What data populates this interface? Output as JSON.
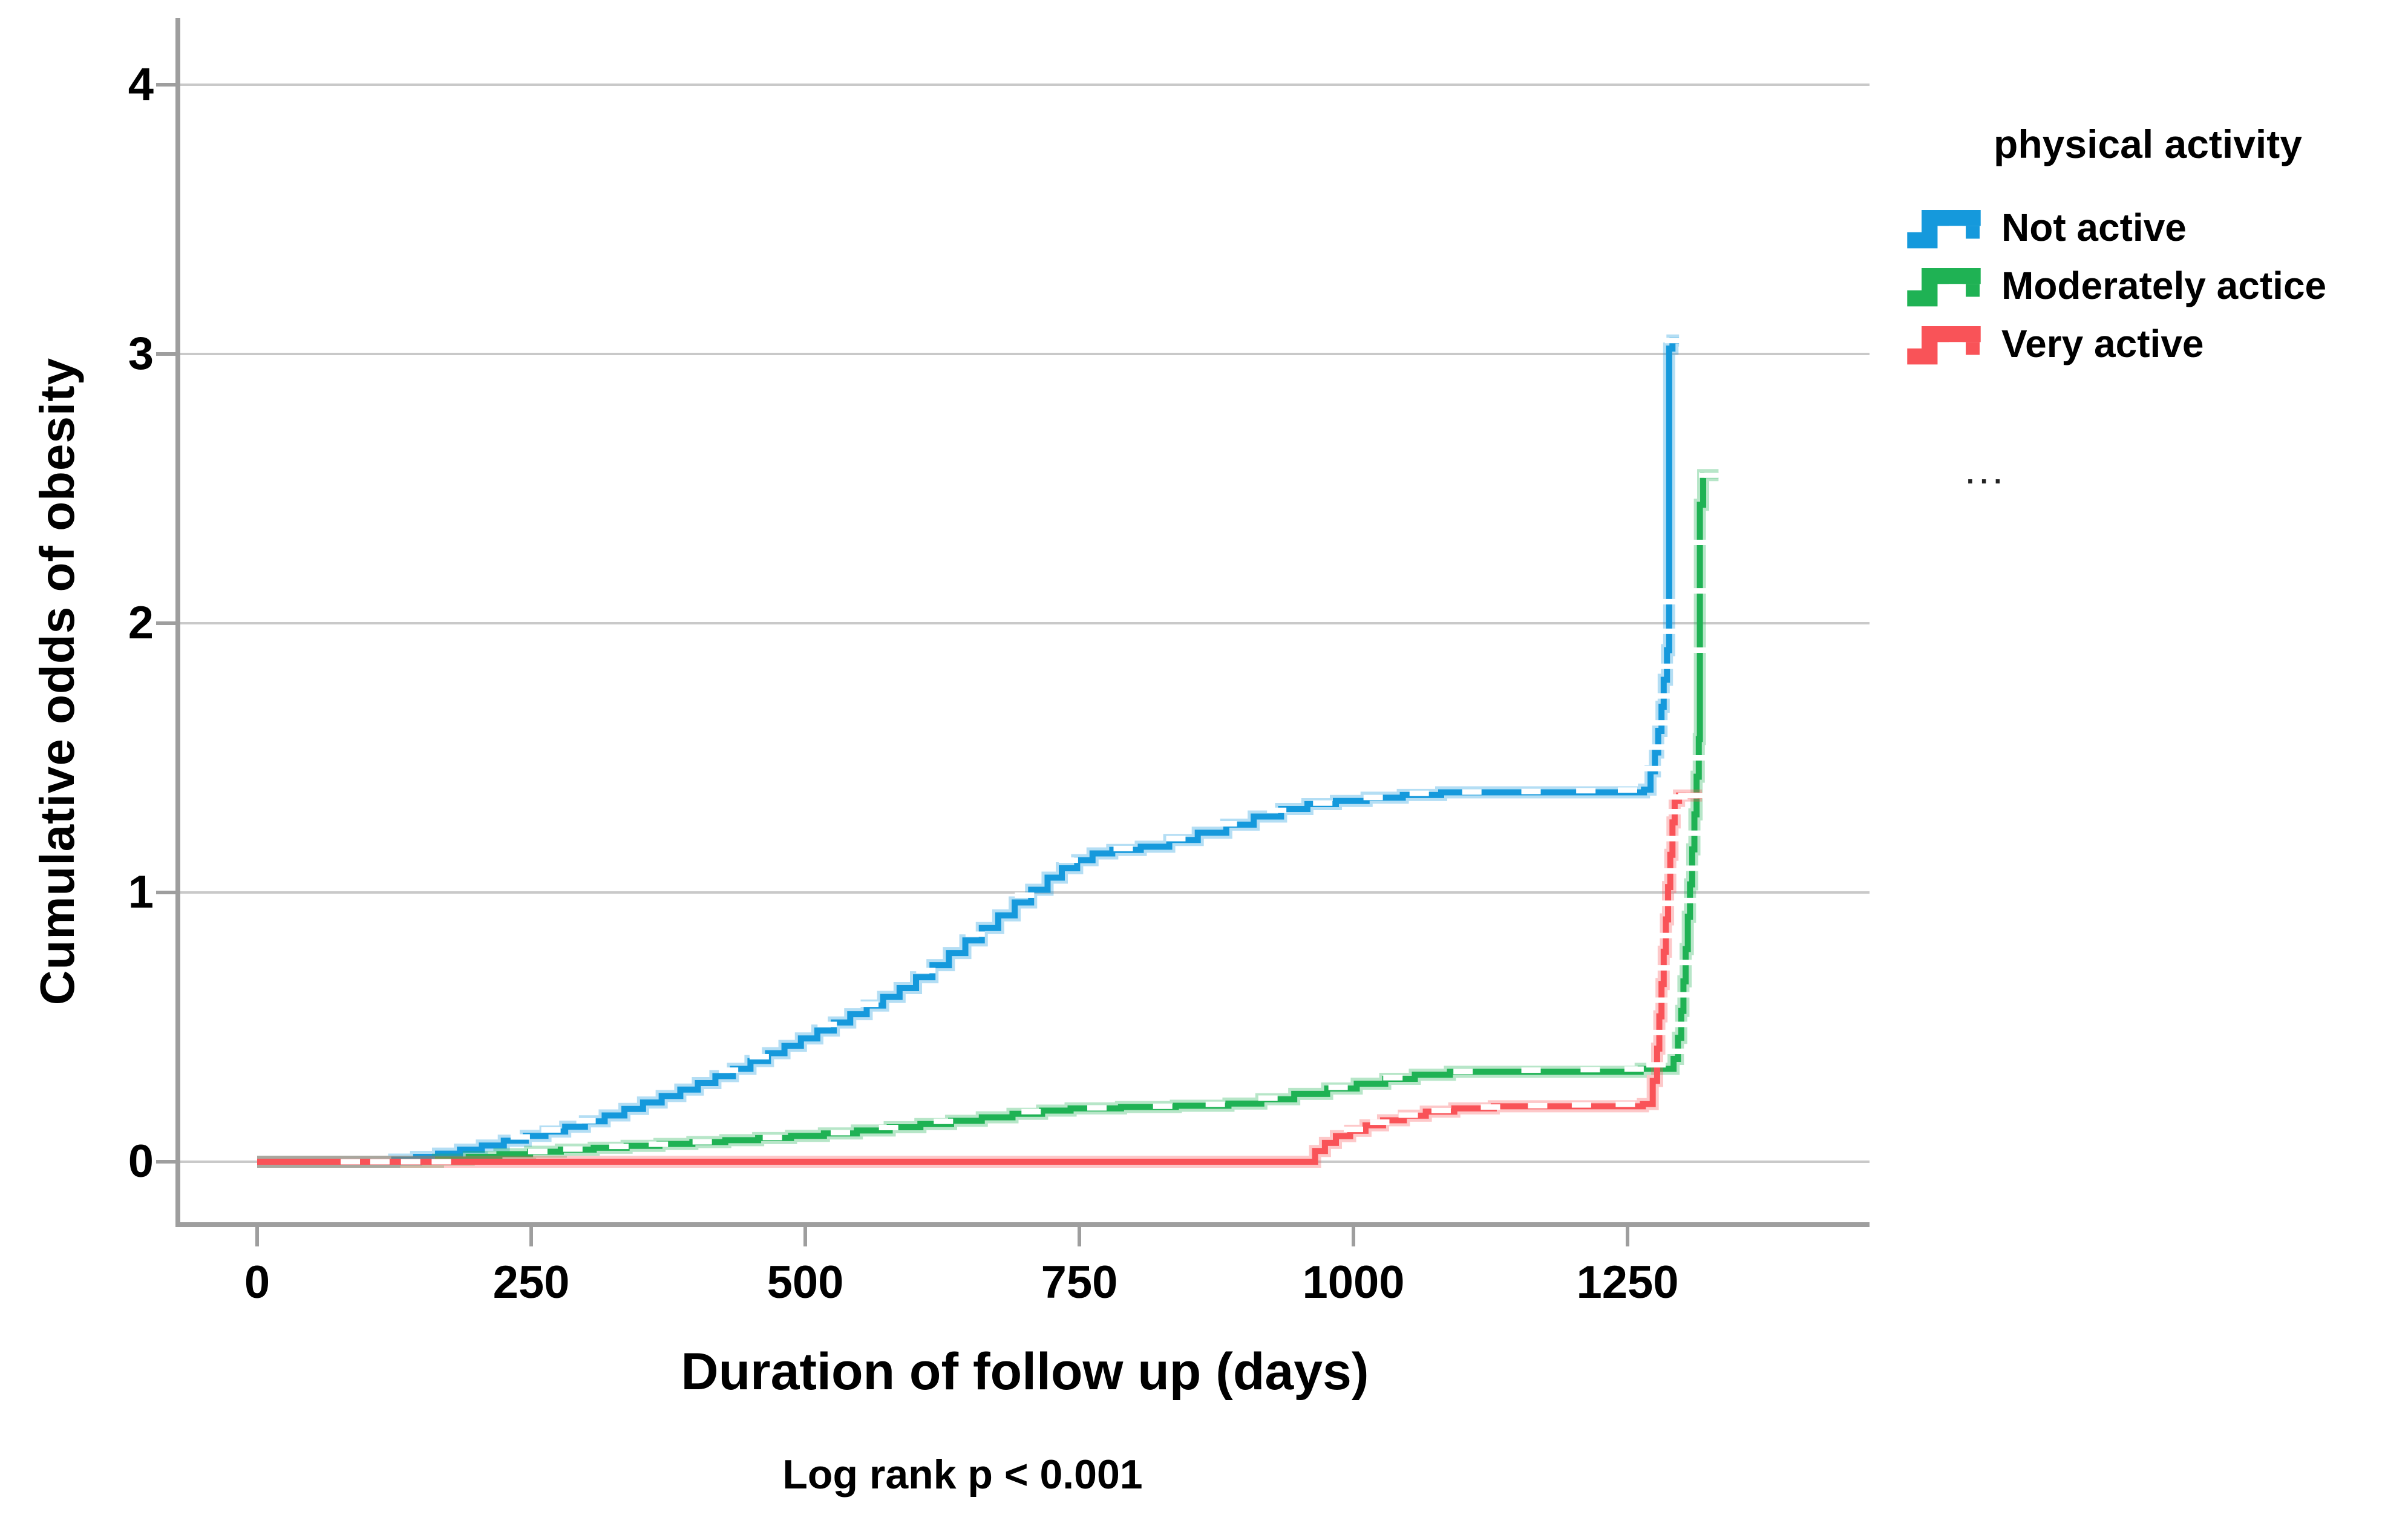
{
  "y_axis": {
    "label": "Cumulative odds of obesity",
    "ticks": [
      0,
      1,
      2,
      3,
      4
    ]
  },
  "x_axis": {
    "label": "Duration of follow up (days)",
    "ticks": [
      0,
      250,
      500,
      750,
      1000,
      1250
    ]
  },
  "caption": "Log rank p < 0.001",
  "legend": {
    "title": "physical activity",
    "ellipsis": "..."
  },
  "colors": {
    "grid": "#c9c9c9",
    "spine": "#9e9e9e",
    "tick": "#9e9e9e",
    "censor_mark": "#ffffff"
  },
  "chart_data": {
    "type": "line",
    "subtype": "step-post",
    "title": "",
    "xlabel": "Duration of follow up (days)",
    "ylabel": "Cumulative odds of obesity",
    "annotation": "Log rank p < 0.001",
    "xlim": [
      -72,
      1471
    ],
    "ylim": [
      -0.24,
      4.24
    ],
    "x_ticks": [
      0,
      250,
      500,
      750,
      1000,
      1250
    ],
    "y_ticks": [
      0,
      1,
      2,
      3,
      4
    ],
    "grid": "horizontal",
    "legend_position": "right",
    "legend_title": "physical activity",
    "series": [
      {
        "name": "Not active",
        "color": "#1599DC",
        "points": [
          [
            0,
            0
          ],
          [
            125,
            0.008
          ],
          [
            145,
            0.018
          ],
          [
            165,
            0.03
          ],
          [
            185,
            0.045
          ],
          [
            205,
            0.06
          ],
          [
            225,
            0.078
          ],
          [
            245,
            0.096
          ],
          [
            263,
            0.112
          ],
          [
            281,
            0.13
          ],
          [
            299,
            0.15
          ],
          [
            317,
            0.172
          ],
          [
            335,
            0.196
          ],
          [
            352,
            0.22
          ],
          [
            369,
            0.244
          ],
          [
            386,
            0.268
          ],
          [
            402,
            0.292
          ],
          [
            418,
            0.318
          ],
          [
            434,
            0.345
          ],
          [
            450,
            0.374
          ],
          [
            466,
            0.403
          ],
          [
            481,
            0.43
          ],
          [
            496,
            0.458
          ],
          [
            511,
            0.487
          ],
          [
            526,
            0.517
          ],
          [
            541,
            0.548
          ],
          [
            556,
            0.58
          ],
          [
            571,
            0.612
          ],
          [
            586,
            0.645
          ],
          [
            601,
            0.685
          ],
          [
            616,
            0.73
          ],
          [
            631,
            0.775
          ],
          [
            646,
            0.822
          ],
          [
            661,
            0.868
          ],
          [
            676,
            0.915
          ],
          [
            691,
            0.963
          ],
          [
            706,
            1.01
          ],
          [
            721,
            1.055
          ],
          [
            734,
            1.09
          ],
          [
            748,
            1.12
          ],
          [
            762,
            1.145
          ],
          [
            780,
            1.158
          ],
          [
            806,
            1.17
          ],
          [
            832,
            1.195
          ],
          [
            858,
            1.222
          ],
          [
            884,
            1.252
          ],
          [
            909,
            1.282
          ],
          [
            934,
            1.31
          ],
          [
            958,
            1.328
          ],
          [
            984,
            1.34
          ],
          [
            1012,
            1.352
          ],
          [
            1045,
            1.362
          ],
          [
            1080,
            1.372
          ],
          [
            1265,
            1.382
          ],
          [
            1271,
            1.45
          ],
          [
            1275,
            1.52
          ],
          [
            1278,
            1.6
          ],
          [
            1281,
            1.69
          ],
          [
            1283,
            1.79
          ],
          [
            1286,
            1.9
          ],
          [
            1288,
            3.02
          ],
          [
            1291,
            3.05
          ],
          [
            1297,
            3.05
          ]
        ],
        "censor_marks": [
          [
            240,
            0.092
          ],
          [
            268,
            0.118
          ],
          [
            300,
            0.152
          ],
          [
            430,
            0.34
          ],
          [
            458,
            0.39
          ],
          [
            520,
            0.51
          ],
          [
            558,
            0.585
          ],
          [
            610,
            0.71
          ],
          [
            655,
            0.845
          ],
          [
            700,
            0.99
          ],
          [
            740,
            1.12
          ],
          [
            790,
            1.163
          ],
          [
            838,
            1.2
          ],
          [
            885,
            1.255
          ],
          [
            930,
            1.305
          ],
          [
            972,
            1.332
          ],
          [
            1018,
            1.353
          ],
          [
            1060,
            1.368
          ],
          [
            1108,
            1.373
          ],
          [
            1162,
            1.375
          ],
          [
            1212,
            1.378
          ],
          [
            1250,
            1.38
          ],
          [
            1272,
            1.46
          ],
          [
            1277,
            1.54
          ],
          [
            1280,
            1.63
          ],
          [
            1283,
            1.73
          ],
          [
            1285,
            1.84
          ],
          [
            1288,
            1.97
          ],
          [
            1288,
            2.08
          ],
          [
            1293,
            3.05
          ]
        ]
      },
      {
        "name": "Moderately actice",
        "color": "#1FB254",
        "points": [
          [
            0,
            0
          ],
          [
            165,
            0.008
          ],
          [
            193,
            0.018
          ],
          [
            221,
            0.028
          ],
          [
            249,
            0.037
          ],
          [
            277,
            0.045
          ],
          [
            307,
            0.052
          ],
          [
            337,
            0.059
          ],
          [
            367,
            0.066
          ],
          [
            397,
            0.073
          ],
          [
            427,
            0.08
          ],
          [
            457,
            0.088
          ],
          [
            487,
            0.096
          ],
          [
            517,
            0.105
          ],
          [
            547,
            0.116
          ],
          [
            577,
            0.128
          ],
          [
            605,
            0.14
          ],
          [
            633,
            0.152
          ],
          [
            661,
            0.165
          ],
          [
            689,
            0.178
          ],
          [
            716,
            0.19
          ],
          [
            742,
            0.198
          ],
          [
            788,
            0.203
          ],
          [
            838,
            0.208
          ],
          [
            886,
            0.216
          ],
          [
            916,
            0.232
          ],
          [
            946,
            0.252
          ],
          [
            976,
            0.272
          ],
          [
            1003,
            0.29
          ],
          [
            1029,
            0.308
          ],
          [
            1056,
            0.323
          ],
          [
            1088,
            0.334
          ],
          [
            1262,
            0.345
          ],
          [
            1292,
            0.382
          ],
          [
            1296,
            0.46
          ],
          [
            1299,
            0.56
          ],
          [
            1301,
            0.67
          ],
          [
            1303,
            0.79
          ],
          [
            1305,
            0.91
          ],
          [
            1307,
            1.03
          ],
          [
            1309,
            1.16
          ],
          [
            1311,
            1.29
          ],
          [
            1313,
            1.43
          ],
          [
            1315,
            1.57
          ],
          [
            1316,
            2.44
          ],
          [
            1319,
            2.55
          ],
          [
            1333,
            2.55
          ]
        ],
        "censor_marks": [
          [
            256,
            0.038
          ],
          [
            288,
            0.047
          ],
          [
            330,
            0.057
          ],
          [
            366,
            0.065
          ],
          [
            406,
            0.074
          ],
          [
            470,
            0.09
          ],
          [
            532,
            0.108
          ],
          [
            576,
            0.127
          ],
          [
            626,
            0.15
          ],
          [
            706,
            0.186
          ],
          [
            766,
            0.2
          ],
          [
            826,
            0.206
          ],
          [
            874,
            0.213
          ],
          [
            922,
            0.236
          ],
          [
            986,
            0.276
          ],
          [
            1036,
            0.312
          ],
          [
            1100,
            0.335
          ],
          [
            1162,
            0.34
          ],
          [
            1216,
            0.342
          ],
          [
            1256,
            0.344
          ],
          [
            1295,
            0.41
          ],
          [
            1298,
            0.51
          ],
          [
            1301,
            0.62
          ],
          [
            1303,
            0.74
          ],
          [
            1306,
            0.97
          ],
          [
            1308,
            1.09
          ],
          [
            1310,
            1.22
          ],
          [
            1312,
            1.36
          ],
          [
            1314,
            1.5
          ],
          [
            1316,
            1.9
          ],
          [
            1316,
            2.12
          ],
          [
            1316,
            2.3
          ],
          [
            1324,
            2.55
          ],
          [
            1329,
            2.55
          ]
        ]
      },
      {
        "name": "Very active",
        "color": "#F95358",
        "points": [
          [
            0,
            0
          ],
          [
            956,
            0
          ],
          [
            965,
            0.04
          ],
          [
            974,
            0.07
          ],
          [
            984,
            0.095
          ],
          [
            997,
            0.115
          ],
          [
            1011,
            0.135
          ],
          [
            1027,
            0.154
          ],
          [
            1046,
            0.171
          ],
          [
            1066,
            0.186
          ],
          [
            1092,
            0.198
          ],
          [
            1128,
            0.206
          ],
          [
            1264,
            0.214
          ],
          [
            1273,
            0.3
          ],
          [
            1277,
            0.42
          ],
          [
            1279,
            0.54
          ],
          [
            1281,
            0.66
          ],
          [
            1283,
            0.78
          ],
          [
            1285,
            0.9
          ],
          [
            1287,
            1.02
          ],
          [
            1289,
            1.14
          ],
          [
            1291,
            1.26
          ],
          [
            1293,
            1.34
          ],
          [
            1297,
            1.36
          ],
          [
            1318,
            1.36
          ]
        ],
        "censor_marks": [
          [
            85,
            0
          ],
          [
            112,
            0
          ],
          [
            140,
            0
          ],
          [
            168,
            0
          ],
          [
            1000,
            0.12
          ],
          [
            1024,
            0.147
          ],
          [
            1050,
            0.173
          ],
          [
            1080,
            0.19
          ],
          [
            1125,
            0.203
          ],
          [
            1168,
            0.208
          ],
          [
            1208,
            0.211
          ],
          [
            1248,
            0.213
          ],
          [
            1276,
            0.36
          ],
          [
            1279,
            0.48
          ],
          [
            1281,
            0.6
          ],
          [
            1283,
            0.72
          ],
          [
            1285,
            0.84
          ],
          [
            1287,
            0.96
          ],
          [
            1289,
            1.08
          ],
          [
            1291,
            1.2
          ],
          [
            1293,
            1.3
          ],
          [
            1296,
            1.355
          ],
          [
            1305,
            1.36
          ],
          [
            1312,
            1.36
          ]
        ]
      }
    ]
  }
}
